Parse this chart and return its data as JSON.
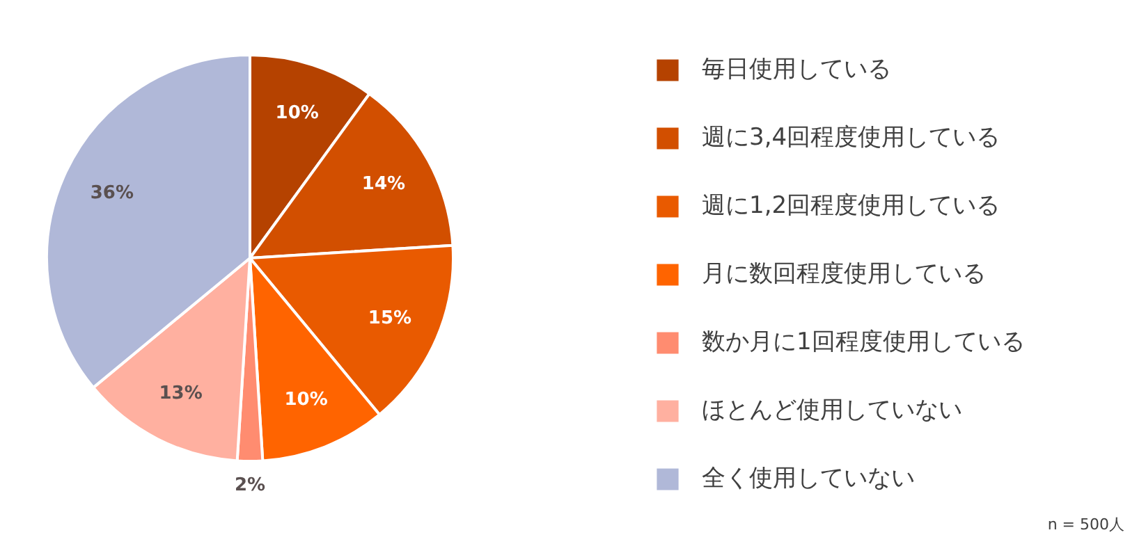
{
  "chart_data": {
    "type": "pie",
    "categories": [
      "毎日使用している",
      "週に3,4回程度使用している",
      "週に1,2回程度使用している",
      "月に数回程度使用している",
      "数か月に1回程度使用している",
      "ほとんど使用していない",
      "全く使用していない"
    ],
    "values": [
      10,
      14,
      15,
      10,
      2,
      13,
      36
    ],
    "colors": [
      "#b54200",
      "#d24f00",
      "#e95a00",
      "#ff6400",
      "#ff8c70",
      "#ffb0a0",
      "#b0b8d8"
    ],
    "value_labels": [
      "10%",
      "14%",
      "15%",
      "10%",
      "2%",
      "13%",
      "36%"
    ],
    "legend": "right",
    "annotations": [
      "n = 500人"
    ]
  }
}
